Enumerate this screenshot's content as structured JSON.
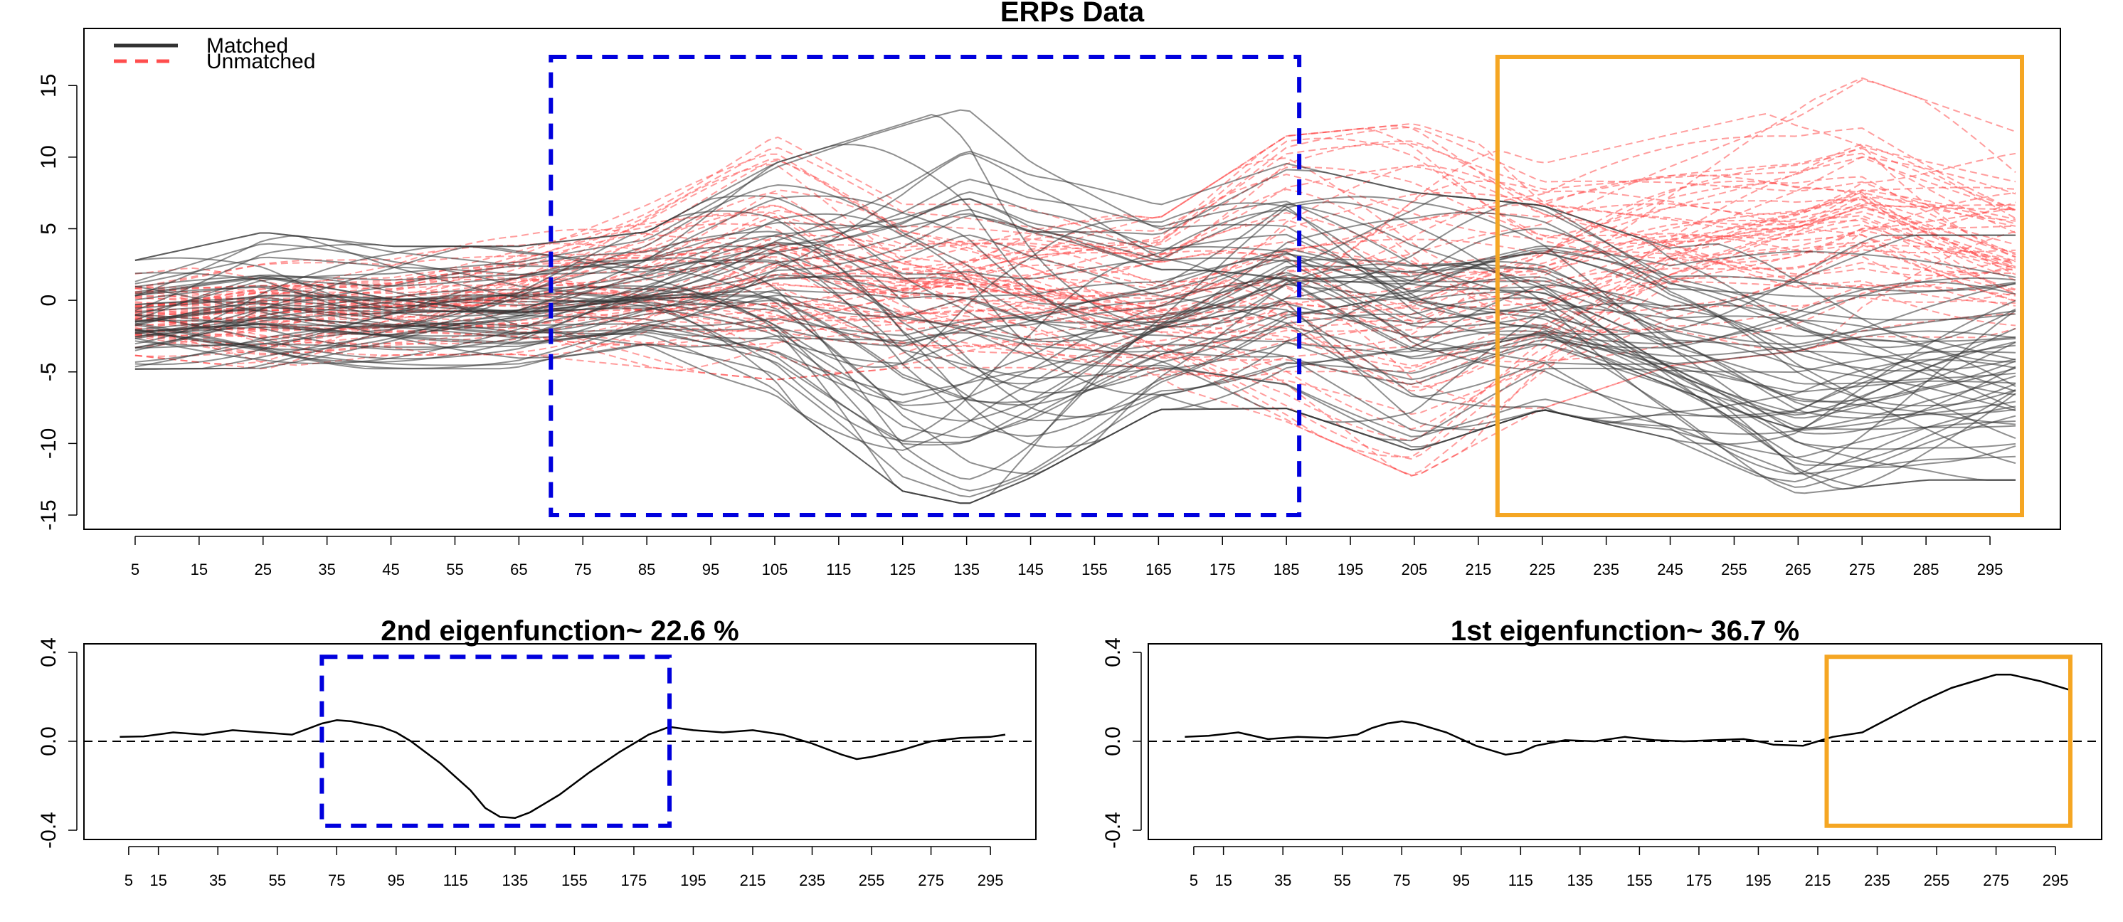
{
  "chart_data": [
    {
      "type": "line",
      "title": "ERPs Data",
      "xlabel": "",
      "ylabel": "",
      "x_ticks": [
        5,
        15,
        25,
        35,
        45,
        55,
        65,
        75,
        85,
        95,
        105,
        115,
        125,
        135,
        145,
        155,
        165,
        175,
        185,
        195,
        205,
        215,
        225,
        235,
        245,
        255,
        265,
        275,
        285,
        295
      ],
      "y_ticks": [
        -15,
        -10,
        -5,
        0,
        5,
        10,
        15
      ],
      "xlim": [
        0,
        300
      ],
      "ylim": [
        -15,
        17
      ],
      "legend": {
        "position": "top-left",
        "entries": [
          "Matched",
          "Unmatched"
        ]
      },
      "legend_title": "",
      "grid": false,
      "line_colors": {
        "Matched": "#333333",
        "Unmatched": "#ff4d4d"
      },
      "series": [
        {
          "name": "Matched",
          "style": "solid",
          "color": "#333333",
          "envelope": [
            {
              "x": 5,
              "min": -5,
              "max": 3
            },
            {
              "x": 25,
              "min": -5,
              "max": 5
            },
            {
              "x": 45,
              "min": -5,
              "max": 4
            },
            {
              "x": 65,
              "min": -5,
              "max": 4
            },
            {
              "x": 85,
              "min": -4,
              "max": 5
            },
            {
              "x": 105,
              "min": -7,
              "max": 10
            },
            {
              "x": 125,
              "min": -14,
              "max": 13
            },
            {
              "x": 135,
              "min": -15,
              "max": 14.5
            },
            {
              "x": 145,
              "min": -13,
              "max": 11
            },
            {
              "x": 165,
              "min": -8,
              "max": 7
            },
            {
              "x": 185,
              "min": -8,
              "max": 10
            },
            {
              "x": 205,
              "min": -11,
              "max": 8
            },
            {
              "x": 225,
              "min": -8,
              "max": 7
            },
            {
              "x": 245,
              "min": -10,
              "max": 4
            },
            {
              "x": 265,
              "min": -14,
              "max": 5
            },
            {
              "x": 285,
              "min": -13,
              "max": 5
            },
            {
              "x": 300,
              "min": -13,
              "max": 5
            }
          ]
        },
        {
          "name": "Unmatched",
          "style": "dashed",
          "color": "#ff4d4d",
          "envelope": [
            {
              "x": 5,
              "min": -4,
              "max": 2
            },
            {
              "x": 25,
              "min": -5,
              "max": 3
            },
            {
              "x": 45,
              "min": -4,
              "max": 3
            },
            {
              "x": 65,
              "min": -4,
              "max": 5
            },
            {
              "x": 85,
              "min": -5,
              "max": 8
            },
            {
              "x": 105,
              "min": -6,
              "max": 12
            },
            {
              "x": 125,
              "min": -5,
              "max": 7
            },
            {
              "x": 145,
              "min": -5,
              "max": 7
            },
            {
              "x": 165,
              "min": -6,
              "max": 6
            },
            {
              "x": 185,
              "min": -9,
              "max": 12
            },
            {
              "x": 205,
              "min": -13,
              "max": 13
            },
            {
              "x": 225,
              "min": -8,
              "max": 10
            },
            {
              "x": 245,
              "min": -5,
              "max": 12
            },
            {
              "x": 265,
              "min": -4,
              "max": 14
            },
            {
              "x": 275,
              "min": -3,
              "max": 16
            },
            {
              "x": 300,
              "min": -3,
              "max": 12
            }
          ]
        }
      ],
      "highlight_boxes": [
        {
          "x_range": [
            70,
            187
          ],
          "y_range": [
            -15,
            17
          ],
          "style": "dashed",
          "color": "#0000dd"
        },
        {
          "x_range": [
            218,
            300
          ],
          "y_range": [
            -15,
            17
          ],
          "style": "solid",
          "color": "#f5a623"
        }
      ]
    },
    {
      "type": "line",
      "title": "2nd eigenfunction~ 22.6 %",
      "x_ticks": [
        5,
        15,
        35,
        55,
        75,
        95,
        115,
        135,
        155,
        175,
        195,
        215,
        235,
        255,
        275,
        295
      ],
      "y_ticks": [
        "0.4",
        "0.0",
        "-0.4"
      ],
      "xlim": [
        0,
        300
      ],
      "ylim": [
        -0.4,
        0.4
      ],
      "reference_line": {
        "y": 0,
        "style": "dashed"
      },
      "series": [
        {
          "name": "",
          "color": "#000000",
          "x": [
            2,
            10,
            20,
            30,
            40,
            50,
            60,
            65,
            70,
            75,
            80,
            90,
            95,
            100,
            110,
            120,
            125,
            130,
            135,
            140,
            150,
            160,
            170,
            180,
            187,
            195,
            205,
            215,
            225,
            235,
            245,
            250,
            255,
            265,
            275,
            285,
            295,
            300
          ],
          "y": [
            0.02,
            0.022,
            0.04,
            0.03,
            0.05,
            0.04,
            0.03,
            0.055,
            0.08,
            0.095,
            0.09,
            0.065,
            0.04,
            0.0,
            -0.1,
            -0.22,
            -0.3,
            -0.34,
            -0.345,
            -0.32,
            -0.24,
            -0.14,
            -0.05,
            0.03,
            0.065,
            0.05,
            0.04,
            0.05,
            0.03,
            -0.01,
            -0.06,
            -0.08,
            -0.07,
            -0.04,
            0.0,
            0.015,
            0.02,
            0.03
          ]
        }
      ],
      "highlight_boxes": [
        {
          "x_range": [
            70,
            187
          ],
          "y_range": [
            -0.38,
            0.38
          ],
          "style": "dashed",
          "color": "#0000dd"
        }
      ]
    },
    {
      "type": "line",
      "title": "1st eigenfunction~ 36.7 %",
      "x_ticks": [
        5,
        15,
        35,
        55,
        75,
        95,
        115,
        135,
        155,
        175,
        195,
        215,
        235,
        255,
        275,
        295
      ],
      "y_ticks": [
        "0.4",
        "0.0",
        "-0.4"
      ],
      "xlim": [
        0,
        300
      ],
      "ylim": [
        -0.4,
        0.4
      ],
      "reference_line": {
        "y": 0,
        "style": "dashed"
      },
      "series": [
        {
          "name": "",
          "color": "#000000",
          "x": [
            2,
            10,
            20,
            30,
            40,
            50,
            60,
            65,
            70,
            75,
            80,
            90,
            95,
            100,
            110,
            115,
            120,
            130,
            140,
            150,
            160,
            170,
            180,
            190,
            195,
            200,
            210,
            215,
            220,
            230,
            240,
            250,
            260,
            270,
            275,
            280,
            290,
            300
          ],
          "y": [
            0.02,
            0.025,
            0.04,
            0.01,
            0.02,
            0.015,
            0.03,
            0.06,
            0.08,
            0.09,
            0.08,
            0.04,
            0.01,
            -0.02,
            -0.06,
            -0.05,
            -0.02,
            0.005,
            0.0,
            0.02,
            0.005,
            0.0,
            0.005,
            0.01,
            0.0,
            -0.015,
            -0.02,
            0.0,
            0.02,
            0.04,
            0.11,
            0.18,
            0.24,
            0.28,
            0.3,
            0.3,
            0.27,
            0.23
          ]
        }
      ],
      "highlight_boxes": [
        {
          "x_range": [
            218,
            300
          ],
          "y_range": [
            -0.38,
            0.38
          ],
          "style": "solid",
          "color": "#f5a623"
        }
      ]
    }
  ]
}
